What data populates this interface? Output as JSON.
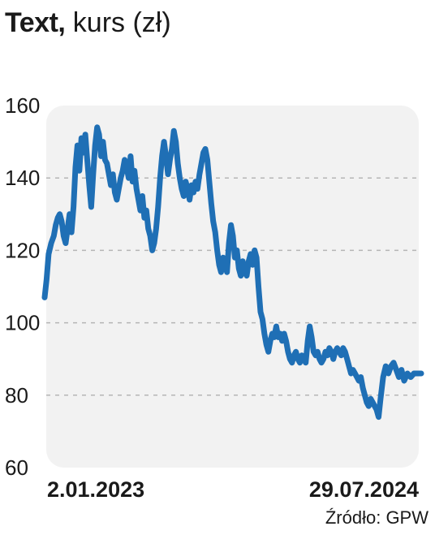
{
  "header": {
    "title_bold": "Text,",
    "title_rest": " kurs (zł)"
  },
  "source": "Źródło: GPW",
  "chart_data": {
    "type": "line",
    "title": "Text, kurs (zł)",
    "ylim": [
      60,
      160
    ],
    "y_ticks": [
      60,
      80,
      100,
      120,
      140,
      160
    ],
    "x_tick_labels": [
      "2.01.2023",
      "29.07.2024"
    ],
    "grid": true,
    "line_color": "#1f6fb5",
    "x_range": [
      "2023-01-02",
      "2024-07-29"
    ],
    "series": [
      {
        "points": [
          [
            "2023-01-02",
            107
          ],
          [
            "2023-01-05",
            112
          ],
          [
            "2023-01-08",
            119
          ],
          [
            "2023-01-12",
            122
          ],
          [
            "2023-01-16",
            124
          ],
          [
            "2023-01-19",
            127
          ],
          [
            "2023-01-22",
            129
          ],
          [
            "2023-01-25",
            130
          ],
          [
            "2023-01-28",
            128
          ],
          [
            "2023-01-31",
            124
          ],
          [
            "2023-02-03",
            122
          ],
          [
            "2023-02-06",
            126
          ],
          [
            "2023-02-09",
            130
          ],
          [
            "2023-02-12",
            125
          ],
          [
            "2023-02-15",
            132
          ],
          [
            "2023-02-18",
            143
          ],
          [
            "2023-02-21",
            149
          ],
          [
            "2023-02-24",
            142
          ],
          [
            "2023-02-27",
            151
          ],
          [
            "2023-03-02",
            147
          ],
          [
            "2023-03-05",
            152
          ],
          [
            "2023-03-08",
            145
          ],
          [
            "2023-03-11",
            138
          ],
          [
            "2023-03-14",
            132
          ],
          [
            "2023-03-17",
            141
          ],
          [
            "2023-03-20",
            149
          ],
          [
            "2023-03-23",
            154
          ],
          [
            "2023-03-26",
            152
          ],
          [
            "2023-03-29",
            146
          ],
          [
            "2023-04-01",
            150
          ],
          [
            "2023-04-04",
            145
          ],
          [
            "2023-04-07",
            144
          ],
          [
            "2023-04-10",
            141
          ],
          [
            "2023-04-13",
            138
          ],
          [
            "2023-04-16",
            141
          ],
          [
            "2023-04-19",
            136
          ],
          [
            "2023-04-22",
            134
          ],
          [
            "2023-04-25",
            137
          ],
          [
            "2023-04-28",
            140
          ],
          [
            "2023-05-01",
            142
          ],
          [
            "2023-05-04",
            145
          ],
          [
            "2023-05-07",
            143
          ],
          [
            "2023-05-10",
            140
          ],
          [
            "2023-05-13",
            146
          ],
          [
            "2023-05-16",
            139
          ],
          [
            "2023-05-19",
            142
          ],
          [
            "2023-05-22",
            137
          ],
          [
            "2023-05-25",
            134
          ],
          [
            "2023-05-28",
            131
          ],
          [
            "2023-05-31",
            135
          ],
          [
            "2023-06-03",
            129
          ],
          [
            "2023-06-06",
            131
          ],
          [
            "2023-06-09",
            126
          ],
          [
            "2023-06-12",
            124
          ],
          [
            "2023-06-15",
            120
          ],
          [
            "2023-06-18",
            122
          ],
          [
            "2023-06-21",
            126
          ],
          [
            "2023-06-24",
            132
          ],
          [
            "2023-06-27",
            140
          ],
          [
            "2023-06-30",
            146
          ],
          [
            "2023-07-03",
            150
          ],
          [
            "2023-07-06",
            146
          ],
          [
            "2023-07-09",
            141
          ],
          [
            "2023-07-12",
            145
          ],
          [
            "2023-07-15",
            148
          ],
          [
            "2023-07-18",
            153
          ],
          [
            "2023-07-21",
            150
          ],
          [
            "2023-07-24",
            144
          ],
          [
            "2023-07-27",
            140
          ],
          [
            "2023-07-30",
            137
          ],
          [
            "2023-08-02",
            135
          ],
          [
            "2023-08-05",
            139
          ],
          [
            "2023-08-08",
            137
          ],
          [
            "2023-08-11",
            134
          ],
          [
            "2023-08-14",
            138
          ],
          [
            "2023-08-17",
            136
          ],
          [
            "2023-08-20",
            139
          ],
          [
            "2023-08-23",
            137
          ],
          [
            "2023-08-26",
            141
          ],
          [
            "2023-08-29",
            144
          ],
          [
            "2023-09-01",
            147
          ],
          [
            "2023-09-04",
            148
          ],
          [
            "2023-09-07",
            145
          ],
          [
            "2023-09-10",
            139
          ],
          [
            "2023-09-13",
            133
          ],
          [
            "2023-09-16",
            128
          ],
          [
            "2023-09-19",
            125
          ],
          [
            "2023-09-22",
            120
          ],
          [
            "2023-09-25",
            116
          ],
          [
            "2023-09-28",
            114
          ],
          [
            "2023-10-01",
            118
          ],
          [
            "2023-10-04",
            116
          ],
          [
            "2023-10-07",
            114
          ],
          [
            "2023-10-10",
            122
          ],
          [
            "2023-10-13",
            127
          ],
          [
            "2023-10-16",
            124
          ],
          [
            "2023-10-19",
            118
          ],
          [
            "2023-10-22",
            120
          ],
          [
            "2023-10-25",
            115
          ],
          [
            "2023-10-28",
            113
          ],
          [
            "2023-10-31",
            117
          ],
          [
            "2023-11-03",
            114
          ],
          [
            "2023-11-06",
            113
          ],
          [
            "2023-11-09",
            117
          ],
          [
            "2023-11-12",
            119
          ],
          [
            "2023-11-15",
            116
          ],
          [
            "2023-11-18",
            120
          ],
          [
            "2023-11-21",
            118
          ],
          [
            "2023-11-24",
            110
          ],
          [
            "2023-11-27",
            103
          ],
          [
            "2023-11-30",
            101
          ],
          [
            "2023-12-03",
            97
          ],
          [
            "2023-12-06",
            94
          ],
          [
            "2023-12-09",
            92
          ],
          [
            "2023-12-12",
            95
          ],
          [
            "2023-12-15",
            97
          ],
          [
            "2023-12-18",
            96
          ],
          [
            "2023-12-21",
            99
          ],
          [
            "2023-12-24",
            96
          ],
          [
            "2023-12-27",
            97
          ],
          [
            "2023-12-30",
            95
          ],
          [
            "2024-01-02",
            97
          ],
          [
            "2024-01-05",
            95
          ],
          [
            "2024-01-08",
            92
          ],
          [
            "2024-01-11",
            90
          ],
          [
            "2024-01-14",
            89
          ],
          [
            "2024-01-17",
            91
          ],
          [
            "2024-01-20",
            92
          ],
          [
            "2024-01-23",
            90
          ],
          [
            "2024-01-26",
            89
          ],
          [
            "2024-01-29",
            91
          ],
          [
            "2024-02-01",
            90
          ],
          [
            "2024-02-04",
            89
          ],
          [
            "2024-02-07",
            95
          ],
          [
            "2024-02-10",
            99
          ],
          [
            "2024-02-13",
            96
          ],
          [
            "2024-02-16",
            92
          ],
          [
            "2024-02-19",
            91
          ],
          [
            "2024-02-22",
            92
          ],
          [
            "2024-02-25",
            90
          ],
          [
            "2024-02-28",
            89
          ],
          [
            "2024-03-02",
            90
          ],
          [
            "2024-03-05",
            92
          ],
          [
            "2024-03-08",
            91
          ],
          [
            "2024-03-11",
            93
          ],
          [
            "2024-03-14",
            92
          ],
          [
            "2024-03-17",
            90
          ],
          [
            "2024-03-20",
            92
          ],
          [
            "2024-03-23",
            93
          ],
          [
            "2024-03-26",
            92
          ],
          [
            "2024-03-29",
            91
          ],
          [
            "2024-04-01",
            93
          ],
          [
            "2024-04-04",
            92
          ],
          [
            "2024-04-07",
            90
          ],
          [
            "2024-04-10",
            88
          ],
          [
            "2024-04-13",
            86
          ],
          [
            "2024-04-16",
            87
          ],
          [
            "2024-04-19",
            86
          ],
          [
            "2024-04-22",
            85
          ],
          [
            "2024-04-25",
            84
          ],
          [
            "2024-04-28",
            85
          ],
          [
            "2024-05-01",
            82
          ],
          [
            "2024-05-04",
            80
          ],
          [
            "2024-05-07",
            78
          ],
          [
            "2024-05-10",
            77
          ],
          [
            "2024-05-13",
            79
          ],
          [
            "2024-05-16",
            78
          ],
          [
            "2024-05-19",
            77
          ],
          [
            "2024-05-22",
            76
          ],
          [
            "2024-05-25",
            74
          ],
          [
            "2024-05-28",
            79
          ],
          [
            "2024-06-01",
            85
          ],
          [
            "2024-06-05",
            88
          ],
          [
            "2024-06-09",
            86
          ],
          [
            "2024-06-13",
            88
          ],
          [
            "2024-06-17",
            89
          ],
          [
            "2024-06-21",
            87
          ],
          [
            "2024-06-25",
            85
          ],
          [
            "2024-06-29",
            87
          ],
          [
            "2024-07-03",
            84
          ],
          [
            "2024-07-08",
            86
          ],
          [
            "2024-07-13",
            85
          ],
          [
            "2024-07-18",
            86
          ],
          [
            "2024-07-23",
            86
          ],
          [
            "2024-07-29",
            86
          ]
        ]
      }
    ]
  }
}
